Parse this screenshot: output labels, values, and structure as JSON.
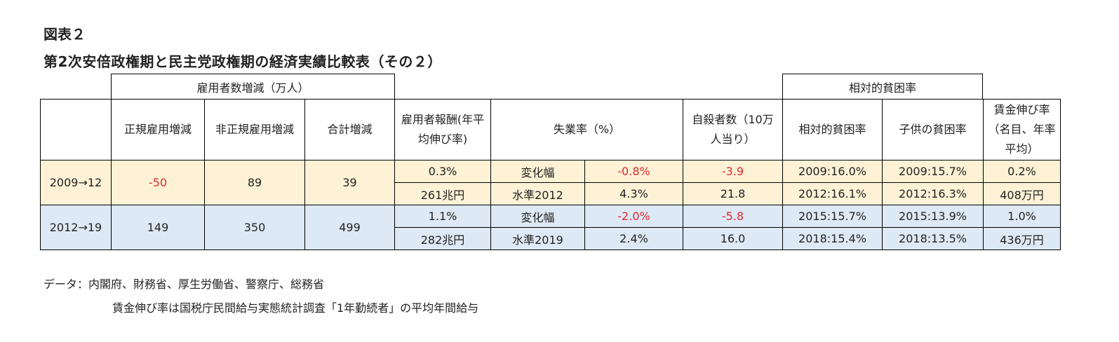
{
  "figure_label": "図表２",
  "title": "第2次安倍政権期と民主党政権期の経済実績比較表（その２）",
  "group_headers": {
    "employment": "雇用者数増減（万人）",
    "poverty": "相対的貧困率"
  },
  "headers": {
    "blank": "",
    "regular": "正規雇用増減",
    "nonregular": "非正規雇用増減",
    "total": "合計増減",
    "compensation": "雇用者報酬(年平均伸び率)",
    "unemployment": "失業率（%）",
    "suicide": "自殺者数（10万人当り）",
    "relative_poverty": "相対的貧困率",
    "child_poverty": "子供の貧困率",
    "wage": "賃金伸び率（名目、年率平均）"
  },
  "rows": [
    {
      "period": "2009→12",
      "regular": "-50",
      "nonregular": "89",
      "total": "39",
      "sub": [
        {
          "compensation": "0.3%",
          "unemp_label": "変化幅",
          "unemp_value": "-0.8%",
          "suicide": "-3.9",
          "relative_poverty": "2009:16.0%",
          "child_poverty": "2009:15.7%",
          "wage": "0.2%"
        },
        {
          "compensation": "261兆円",
          "unemp_label": "水準2012",
          "unemp_value": "4.3%",
          "suicide": "21.8",
          "relative_poverty": "2012:16.1%",
          "child_poverty": "2012:16.3%",
          "wage": "408万円"
        }
      ]
    },
    {
      "period": "2012→19",
      "regular": "149",
      "nonregular": "350",
      "total": "499",
      "sub": [
        {
          "compensation": "1.1%",
          "unemp_label": "変化幅",
          "unemp_value": "-2.0%",
          "suicide": "-5.8",
          "relative_poverty": "2015:15.7%",
          "child_poverty": "2015:13.9%",
          "wage": "1.0%"
        },
        {
          "compensation": "282兆円",
          "unemp_label": "水準2019",
          "unemp_value": "2.4%",
          "suicide": "16.0",
          "relative_poverty": "2018:15.4%",
          "child_poverty": "2018:13.5%",
          "wage": "436万円"
        }
      ]
    }
  ],
  "notes": {
    "source": "データ：内閣府、財務省、厚生労働省、警察庁、総務省",
    "wage_note": "賃金伸び率は国税庁民間給与実態統計調査「1年勤続者」の平均年間給与"
  },
  "colors": {
    "period1_bg": "#fdf2d6",
    "period2_bg": "#dde9f5",
    "negative": "#e0282d",
    "border": "#000000"
  }
}
